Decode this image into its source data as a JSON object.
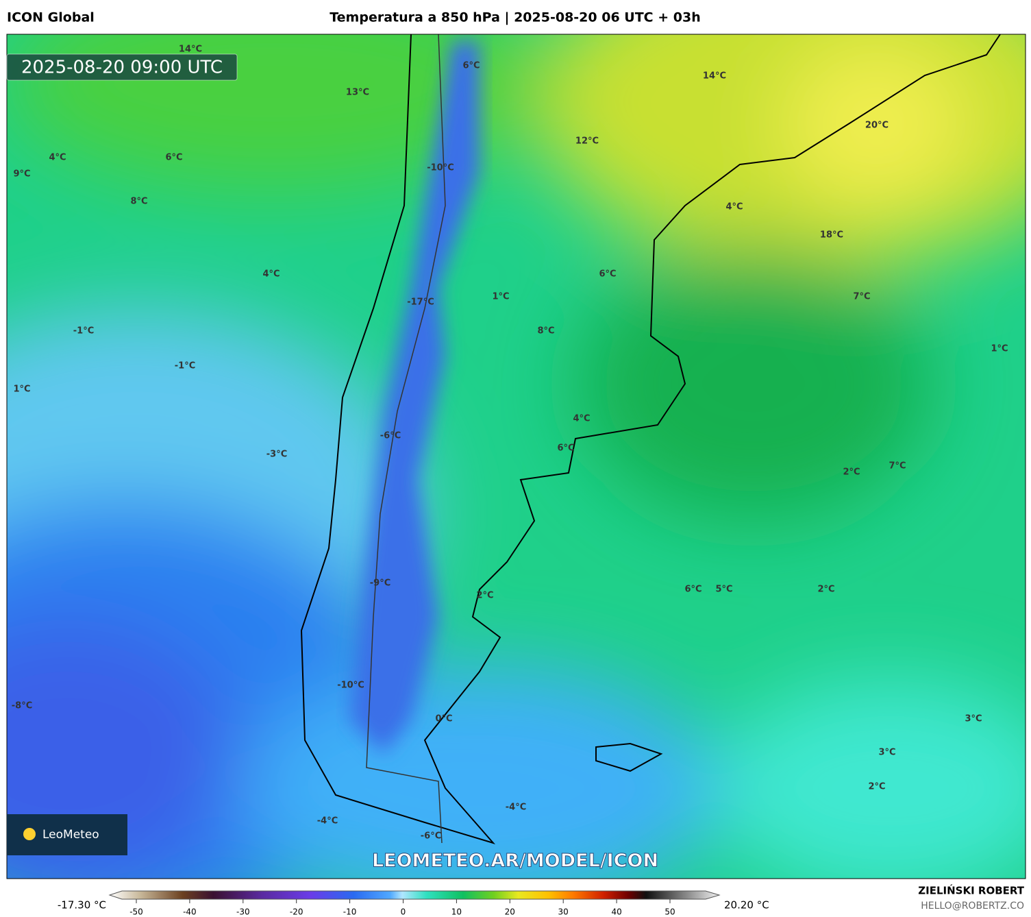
{
  "header": {
    "model": "ICON Global",
    "title": "Temperatura a 850 hPa | 2025-08-20 06 UTC + 03h"
  },
  "map": {
    "timestamp": "2025-08-20 09:00 UTC",
    "watermark": "LEOMETEO.AR/MODEL/ICON",
    "logo": "LeoMeteo",
    "labels": [
      "14°C",
      "13°C",
      "6°C",
      "14°C",
      "20°C",
      "12°C",
      "4°C",
      "6°C",
      "9°C",
      "-10°C",
      "8°C",
      "4°C",
      "18°C",
      "4°C",
      "6°C",
      "1°C",
      "7°C",
      "-17°C",
      "-1°C",
      "8°C",
      "1°C",
      "-1°C",
      "1°C",
      "4°C",
      "-6°C",
      "6°C",
      "-3°C",
      "2°C",
      "7°C",
      "-9°C",
      "2°C",
      "6°C",
      "5°C",
      "2°C",
      "-10°C",
      "-8°C",
      "0°C",
      "3°C",
      "3°C",
      "2°C",
      "-4°C",
      "-4°C",
      "-6°C"
    ]
  },
  "colorbar": {
    "min_label": "-17.30 °C",
    "max_label": "20.20 °C",
    "ticks": [
      -50,
      -40,
      -30,
      -20,
      -10,
      0,
      10,
      20,
      30,
      40,
      50
    ]
  },
  "footer": {
    "author": "ZIELIŃSKI ROBERT",
    "email": "HELLO@ROBERTZ.CO"
  }
}
